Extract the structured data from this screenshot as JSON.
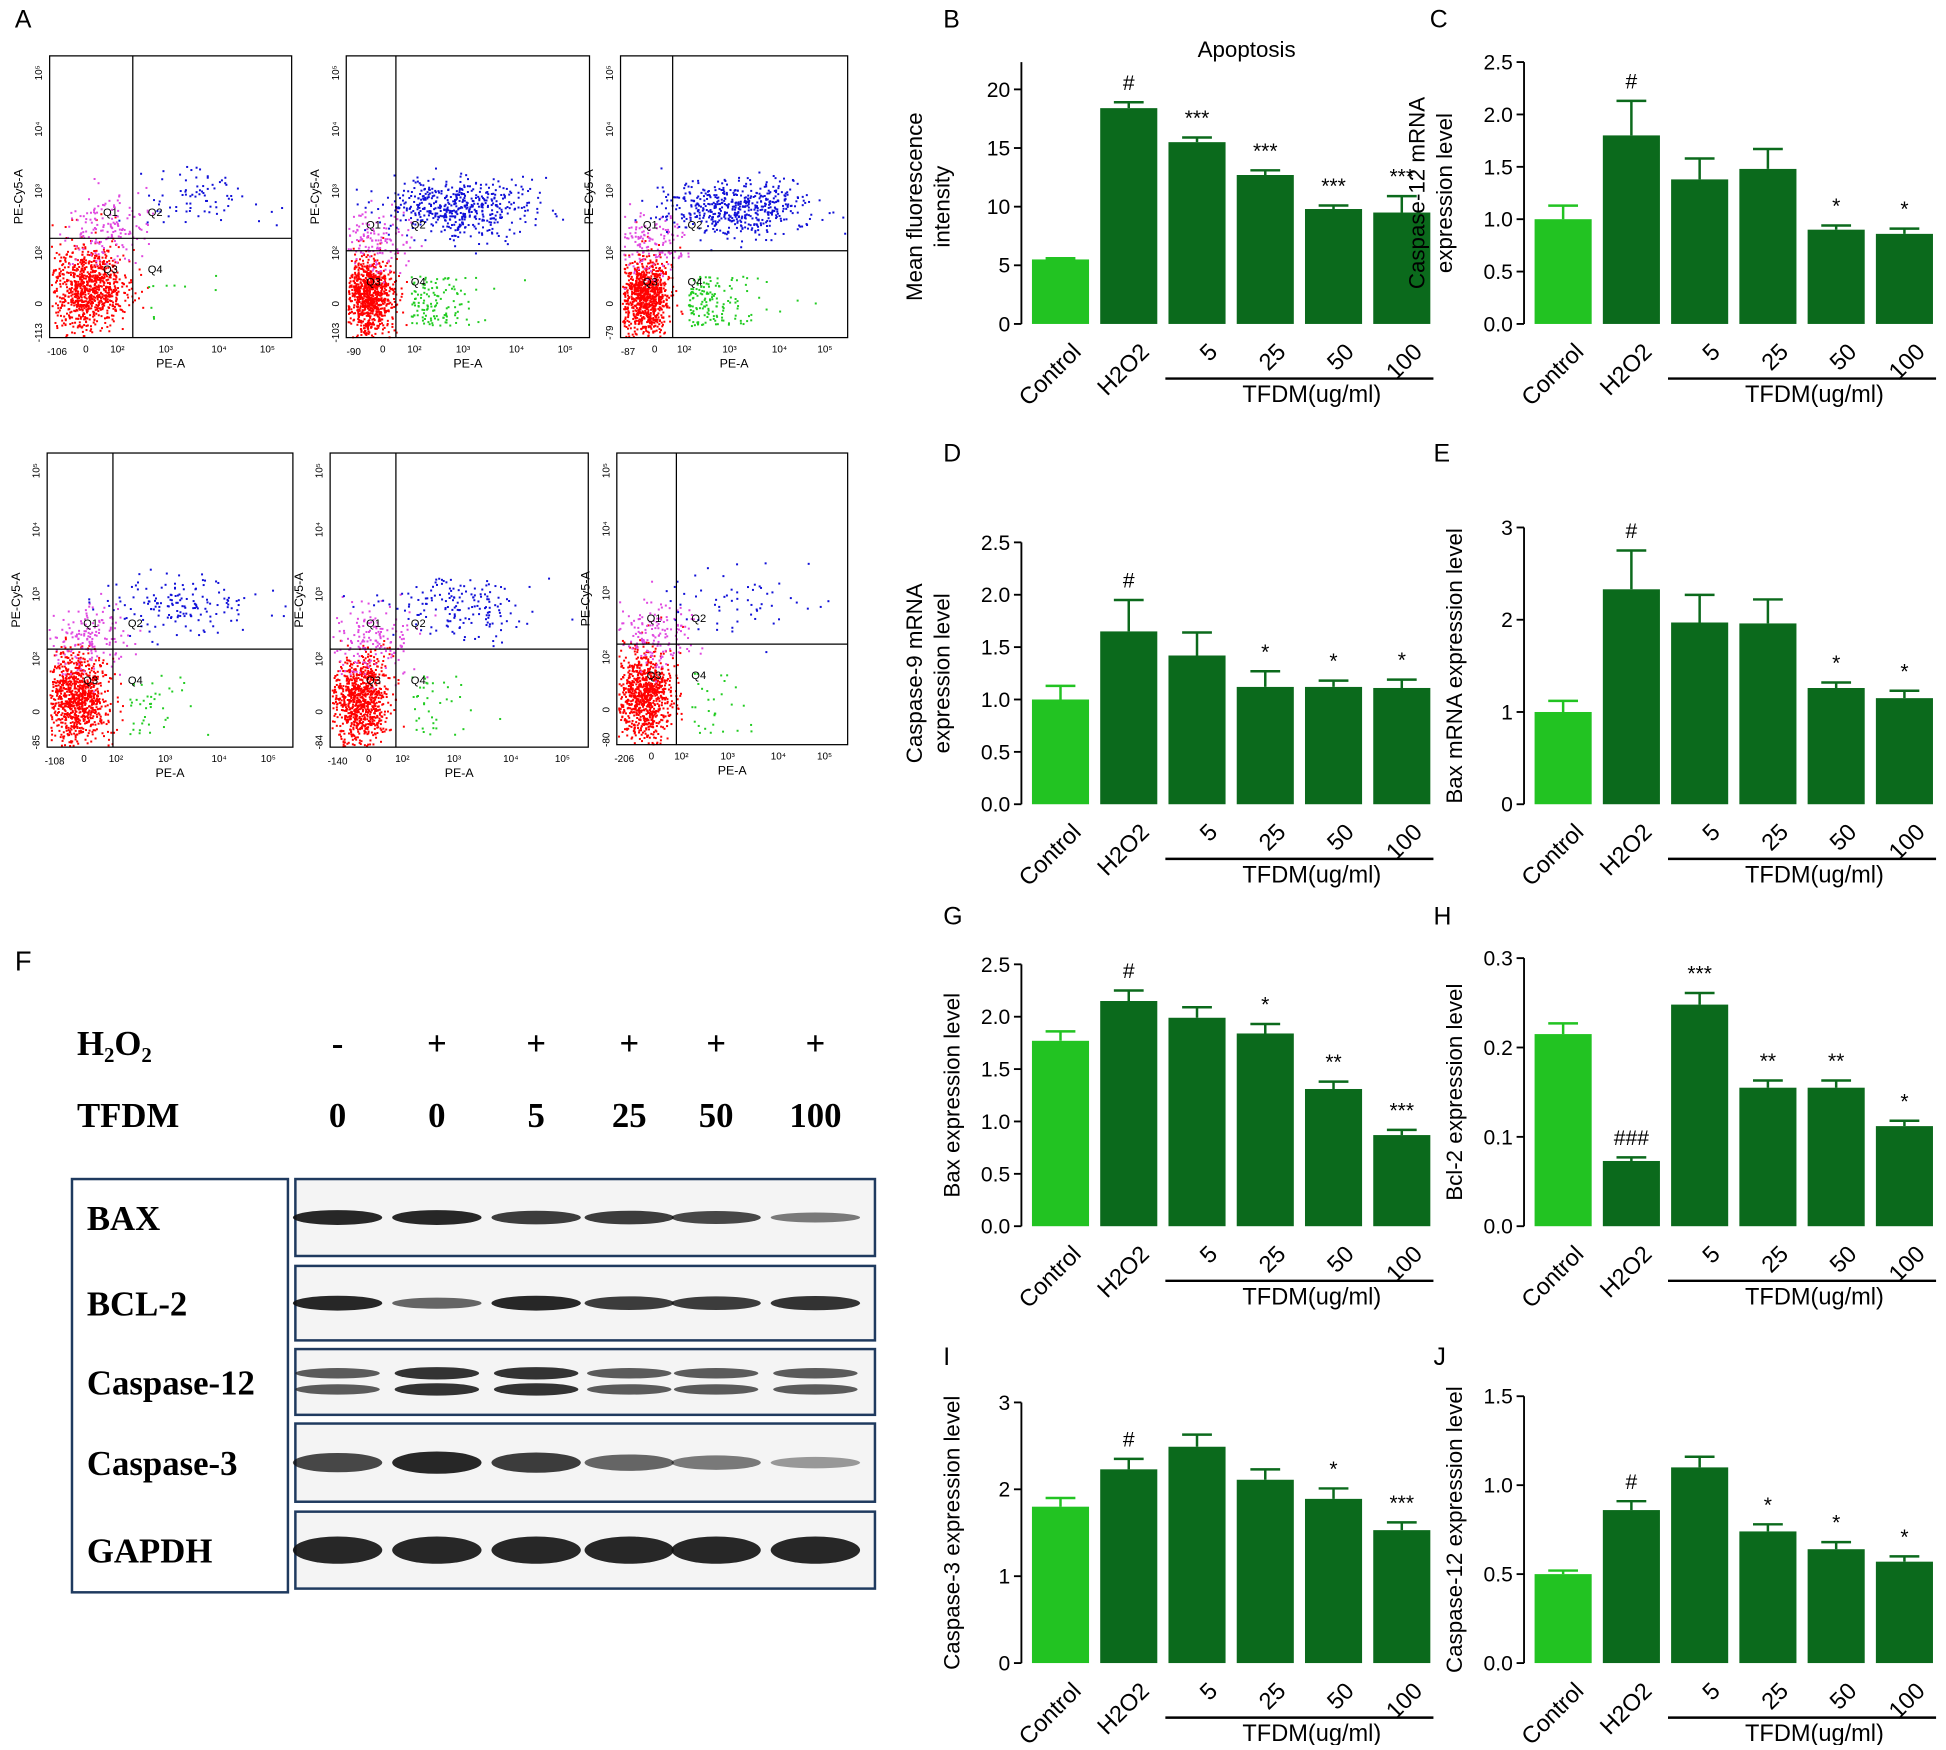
{
  "flow_panels": {
    "panel": "A",
    "x_axis_label": "PE-A",
    "y_axis_label": "PE-Cy5-A",
    "tick_labels": [
      "0",
      "10²",
      "10³",
      "10⁴",
      "10⁵"
    ],
    "quadrant_labels": [
      "Q1",
      "Q2",
      "Q3",
      "Q4"
    ],
    "plots": [
      {
        "x_min": "-106",
        "y_min": "-113"
      },
      {
        "x_min": "-90",
        "y_min": "-103"
      },
      {
        "x_min": "-87",
        "y_min": "-79"
      },
      {
        "x_min": "-108",
        "y_min": "-85"
      },
      {
        "x_min": "-140",
        "y_min": "-84"
      },
      {
        "x_min": "-206",
        "y_min": "-80"
      }
    ]
  },
  "western_blot": {
    "panel": "F",
    "treatment_rows": [
      {
        "label": "H₂O₂",
        "values": [
          "-",
          "+",
          "+",
          "+",
          "+",
          "+"
        ]
      },
      {
        "label": "TFDM",
        "values": [
          "0",
          "0",
          "5",
          "25",
          "50",
          "100"
        ]
      }
    ],
    "proteins": [
      "BAX",
      "BCL-2",
      "Caspase-12",
      "Caspase-3",
      "GAPDH"
    ]
  },
  "chart_data": [
    {
      "type": "bar",
      "panel": "B",
      "title": "Apoptosis",
      "ylabel": [
        "Mean fluorescence",
        "intensity"
      ],
      "categories": [
        "Control",
        "H2O2",
        "5",
        "25",
        "50",
        "100"
      ],
      "group_label": "TFDM(ug/ml)",
      "values": [
        5.5,
        18.4,
        15.5,
        12.7,
        9.8,
        9.5
      ],
      "errors": [
        0.1,
        0.5,
        0.4,
        0.4,
        0.3,
        1.4
      ],
      "annotations": [
        null,
        "#",
        "***",
        "***",
        "***",
        "***"
      ],
      "colors": [
        "#22c322",
        "#0b6a1c",
        "#0b6a1c",
        "#0b6a1c",
        "#0b6a1c",
        "#0b6a1c"
      ],
      "ylim": [
        0,
        20
      ],
      "yticks": [
        0,
        5,
        10,
        15,
        20
      ]
    },
    {
      "type": "bar",
      "panel": "C",
      "ylabel": [
        "Caspase-12 mRNA",
        "expression level"
      ],
      "categories": [
        "Control",
        "H2O2",
        "5",
        "25",
        "50",
        "100"
      ],
      "group_label": "TFDM(ug/ml)",
      "values": [
        1.0,
        1.8,
        1.38,
        1.48,
        0.9,
        0.86
      ],
      "errors": [
        0.13,
        0.33,
        0.2,
        0.19,
        0.04,
        0.05
      ],
      "annotations": [
        null,
        "#",
        null,
        null,
        "*",
        "*"
      ],
      "colors": [
        "#22c322",
        "#0b6a1c",
        "#0b6a1c",
        "#0b6a1c",
        "#0b6a1c",
        "#0b6a1c"
      ],
      "ylim": [
        0,
        2.5
      ],
      "yticks": [
        {
          "value": 0,
          "label": "0.0"
        },
        0.5,
        {
          "value": 1,
          "label": "1.0"
        },
        1.5,
        {
          "value": 2,
          "label": "2.0"
        },
        2.5
      ]
    },
    {
      "type": "bar",
      "panel": "D",
      "ylabel": [
        "Caspase-9 mRNA",
        "expression level"
      ],
      "categories": [
        "Control",
        "H2O2",
        "5",
        "25",
        "50",
        "100"
      ],
      "group_label": "TFDM(ug/ml)",
      "values": [
        1.0,
        1.65,
        1.42,
        1.12,
        1.12,
        1.11
      ],
      "errors": [
        0.13,
        0.3,
        0.22,
        0.15,
        0.06,
        0.08
      ],
      "annotations": [
        null,
        "#",
        null,
        "*",
        "*",
        "*"
      ],
      "colors": [
        "#22c322",
        "#0b6a1c",
        "#0b6a1c",
        "#0b6a1c",
        "#0b6a1c",
        "#0b6a1c"
      ],
      "ylim": [
        0,
        2.5
      ],
      "yticks": [
        {
          "value": 0,
          "label": "0.0"
        },
        0.5,
        {
          "value": 1,
          "label": "1.0"
        },
        1.5,
        {
          "value": 2,
          "label": "2.0"
        },
        2.5
      ]
    },
    {
      "type": "bar",
      "panel": "E",
      "ylabel": [
        "Bax mRNA expression level"
      ],
      "categories": [
        "Control",
        "H2O2",
        "5",
        "25",
        "50",
        "100"
      ],
      "group_label": "TFDM(ug/ml)",
      "values": [
        1.0,
        2.33,
        1.97,
        1.96,
        1.26,
        1.15
      ],
      "errors": [
        0.12,
        0.42,
        0.3,
        0.26,
        0.06,
        0.08
      ],
      "annotations": [
        null,
        "#",
        null,
        null,
        "*",
        "*"
      ],
      "colors": [
        "#22c322",
        "#0b6a1c",
        "#0b6a1c",
        "#0b6a1c",
        "#0b6a1c",
        "#0b6a1c"
      ],
      "ylim": [
        0,
        3
      ],
      "yticks": [
        0,
        1,
        2,
        3
      ]
    },
    {
      "type": "bar",
      "panel": "G",
      "ylabel": [
        "Bax expression level"
      ],
      "categories": [
        "Control",
        "H2O2",
        "5",
        "25",
        "50",
        "100"
      ],
      "group_label": "TFDM(ug/ml)",
      "values": [
        1.77,
        2.15,
        1.99,
        1.84,
        1.31,
        0.87
      ],
      "errors": [
        0.09,
        0.1,
        0.1,
        0.09,
        0.07,
        0.05
      ],
      "annotations": [
        null,
        "#",
        null,
        "*",
        "**",
        "***"
      ],
      "colors": [
        "#22c322",
        "#0b6a1c",
        "#0b6a1c",
        "#0b6a1c",
        "#0b6a1c",
        "#0b6a1c"
      ],
      "ylim": [
        0,
        2.5
      ],
      "yticks": [
        {
          "value": 0,
          "label": "0.0"
        },
        0.5,
        {
          "value": 1,
          "label": "1.0"
        },
        1.5,
        {
          "value": 2,
          "label": "2.0"
        },
        2.5
      ]
    },
    {
      "type": "bar",
      "panel": "H",
      "ylabel": [
        "Bcl-2 expression level"
      ],
      "categories": [
        "Control",
        "H2O2",
        "5",
        "25",
        "50",
        "100"
      ],
      "group_label": "TFDM(ug/ml)",
      "values": [
        0.215,
        0.073,
        0.248,
        0.155,
        0.155,
        0.112
      ],
      "errors": [
        0.012,
        0.004,
        0.013,
        0.008,
        0.008,
        0.006
      ],
      "annotations": [
        null,
        "###",
        "***",
        "**",
        "**",
        "*"
      ],
      "colors": [
        "#22c322",
        "#0b6a1c",
        "#0b6a1c",
        "#0b6a1c",
        "#0b6a1c",
        "#0b6a1c"
      ],
      "ylim": [
        0,
        0.3
      ],
      "yticks": [
        {
          "value": 0,
          "label": "0.0"
        },
        0.1,
        0.2,
        0.3
      ]
    },
    {
      "type": "bar",
      "panel": "I",
      "ylabel": [
        "Caspase-3 expression level"
      ],
      "categories": [
        "Control",
        "H2O2",
        "5",
        "25",
        "50",
        "100"
      ],
      "group_label": "TFDM(ug/ml)",
      "values": [
        1.8,
        2.23,
        2.49,
        2.11,
        1.89,
        1.53
      ],
      "errors": [
        0.1,
        0.12,
        0.14,
        0.12,
        0.12,
        0.09
      ],
      "annotations": [
        null,
        "#",
        null,
        null,
        "*",
        "***"
      ],
      "colors": [
        "#22c322",
        "#0b6a1c",
        "#0b6a1c",
        "#0b6a1c",
        "#0b6a1c",
        "#0b6a1c"
      ],
      "ylim": [
        0,
        3
      ],
      "yticks": [
        0,
        1,
        2,
        3
      ]
    },
    {
      "type": "bar",
      "panel": "J",
      "ylabel": [
        "Caspase-12 expression level"
      ],
      "categories": [
        "Control",
        "H2O2",
        "5",
        "25",
        "50",
        "100"
      ],
      "group_label": "TFDM(ug/ml)",
      "values": [
        0.5,
        0.86,
        1.1,
        0.74,
        0.64,
        0.57
      ],
      "errors": [
        0.02,
        0.05,
        0.06,
        0.04,
        0.04,
        0.03
      ],
      "annotations": [
        null,
        "#",
        null,
        "*",
        "*",
        "*"
      ],
      "colors": [
        "#22c322",
        "#0b6a1c",
        "#0b6a1c",
        "#0b6a1c",
        "#0b6a1c",
        "#0b6a1c"
      ],
      "ylim": [
        0,
        1.5
      ],
      "yticks": [
        {
          "value": 0,
          "label": "0.0"
        },
        0.5,
        {
          "value": 1,
          "label": "1.0"
        },
        1.5
      ]
    }
  ]
}
